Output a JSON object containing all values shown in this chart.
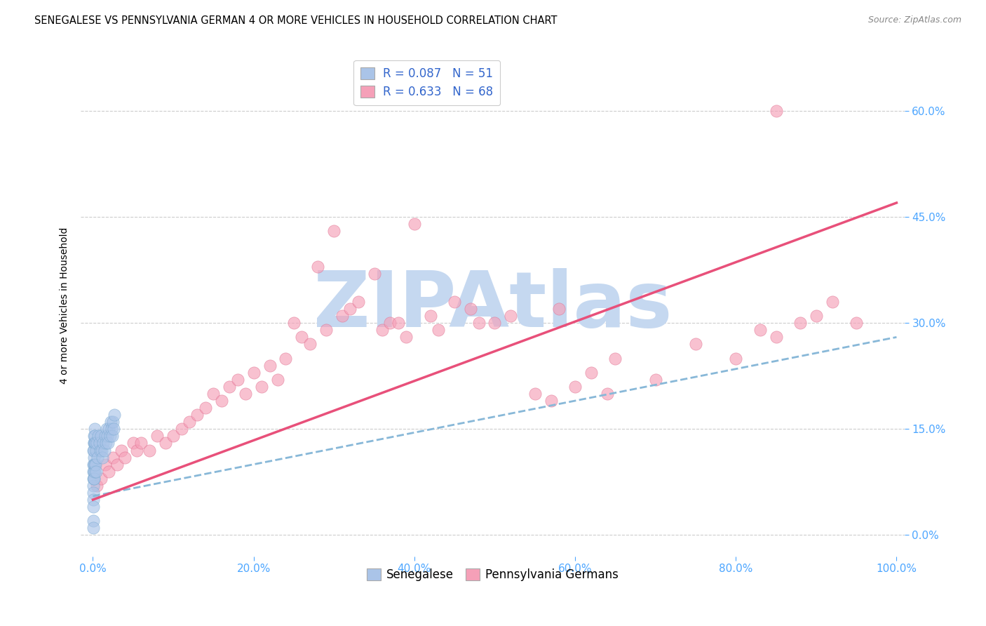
{
  "title": "SENEGALESE VS PENNSYLVANIA GERMAN 4 OR MORE VEHICLES IN HOUSEHOLD CORRELATION CHART",
  "source": "Source: ZipAtlas.com",
  "tick_color": "#4da6ff",
  "ylabel": "4 or more Vehicles in Household",
  "xaxis_ticks": [
    0.0,
    20.0,
    40.0,
    60.0,
    80.0,
    100.0
  ],
  "xaxis_labels": [
    "0.0%",
    "20.0%",
    "40.0%",
    "60.0%",
    "80.0%",
    "100.0%"
  ],
  "yaxis_ticks": [
    0.0,
    0.15,
    0.3,
    0.45,
    0.6
  ],
  "yaxis_labels": [
    "0.0%",
    "15.0%",
    "30.0%",
    "45.0%",
    "60.0%"
  ],
  "xlim": [
    -1.5,
    101
  ],
  "ylim": [
    -0.03,
    0.68
  ],
  "background_color": "#ffffff",
  "grid_color": "#cccccc",
  "watermark_text": "ZIPAtlas",
  "watermark_color": "#c5d8f0",
  "legend_R1": "R = 0.087",
  "legend_N1": "N = 51",
  "legend_R2": "R = 0.633",
  "legend_N2": "N = 68",
  "senegalese_color": "#aac4e8",
  "penn_german_color": "#f5a0b8",
  "senegalese_edge_color": "#7aaad0",
  "penn_german_edge_color": "#e07090",
  "line_sen_color": "#88b8d8",
  "line_pg_color": "#e8507a",
  "dot_size": 110,
  "dot_alpha": 0.65,
  "senegalese_x": [
    0.05,
    0.05,
    0.05,
    0.05,
    0.05,
    0.05,
    0.05,
    0.05,
    0.05,
    0.05,
    0.1,
    0.1,
    0.1,
    0.1,
    0.1,
    0.15,
    0.15,
    0.15,
    0.15,
    0.2,
    0.2,
    0.2,
    0.25,
    0.25,
    0.3,
    0.3,
    0.4,
    0.4,
    0.5,
    0.6,
    0.7,
    0.8,
    0.9,
    1.0,
    1.1,
    1.2,
    1.3,
    1.4,
    1.5,
    1.6,
    1.7,
    1.8,
    1.9,
    2.0,
    2.1,
    2.2,
    2.3,
    2.4,
    2.5,
    2.6,
    2.7
  ],
  "senegalese_y": [
    0.12,
    0.1,
    0.09,
    0.08,
    0.07,
    0.06,
    0.05,
    0.04,
    0.02,
    0.01,
    0.13,
    0.11,
    0.1,
    0.09,
    0.08,
    0.14,
    0.13,
    0.12,
    0.08,
    0.15,
    0.13,
    0.1,
    0.14,
    0.09,
    0.13,
    0.1,
    0.12,
    0.09,
    0.13,
    0.11,
    0.14,
    0.13,
    0.12,
    0.14,
    0.12,
    0.11,
    0.13,
    0.12,
    0.14,
    0.13,
    0.15,
    0.14,
    0.13,
    0.15,
    0.14,
    0.16,
    0.15,
    0.14,
    0.16,
    0.15,
    0.17
  ],
  "penn_german_x": [
    0.5,
    1.0,
    1.5,
    2.0,
    2.5,
    3.0,
    3.5,
    4.0,
    5.0,
    5.5,
    6.0,
    7.0,
    8.0,
    9.0,
    10.0,
    11.0,
    12.0,
    13.0,
    14.0,
    15.0,
    16.0,
    17.0,
    18.0,
    19.0,
    20.0,
    21.0,
    22.0,
    23.0,
    24.0,
    25.0,
    26.0,
    27.0,
    28.0,
    29.0,
    30.0,
    31.0,
    32.0,
    33.0,
    35.0,
    36.0,
    37.0,
    38.0,
    39.0,
    40.0,
    42.0,
    43.0,
    45.0,
    47.0,
    48.0,
    50.0,
    52.0,
    55.0,
    57.0,
    58.0,
    60.0,
    62.0,
    64.0,
    65.0,
    70.0,
    75.0,
    80.0,
    83.0,
    85.0,
    88.0,
    90.0,
    92.0,
    95.0,
    85.0
  ],
  "penn_german_y": [
    0.07,
    0.08,
    0.1,
    0.09,
    0.11,
    0.1,
    0.12,
    0.11,
    0.13,
    0.12,
    0.13,
    0.12,
    0.14,
    0.13,
    0.14,
    0.15,
    0.16,
    0.17,
    0.18,
    0.2,
    0.19,
    0.21,
    0.22,
    0.2,
    0.23,
    0.21,
    0.24,
    0.22,
    0.25,
    0.3,
    0.28,
    0.27,
    0.38,
    0.29,
    0.43,
    0.31,
    0.32,
    0.33,
    0.37,
    0.29,
    0.3,
    0.3,
    0.28,
    0.44,
    0.31,
    0.29,
    0.33,
    0.32,
    0.3,
    0.3,
    0.31,
    0.2,
    0.19,
    0.32,
    0.21,
    0.23,
    0.2,
    0.25,
    0.22,
    0.27,
    0.25,
    0.29,
    0.28,
    0.3,
    0.31,
    0.33,
    0.3,
    0.6
  ],
  "sen_line_x0": 0.0,
  "sen_line_x1": 100.0,
  "sen_line_y0": 0.055,
  "sen_line_y1": 0.28,
  "pg_line_x0": 0.0,
  "pg_line_x1": 100.0,
  "pg_line_y0": 0.05,
  "pg_line_y1": 0.47
}
